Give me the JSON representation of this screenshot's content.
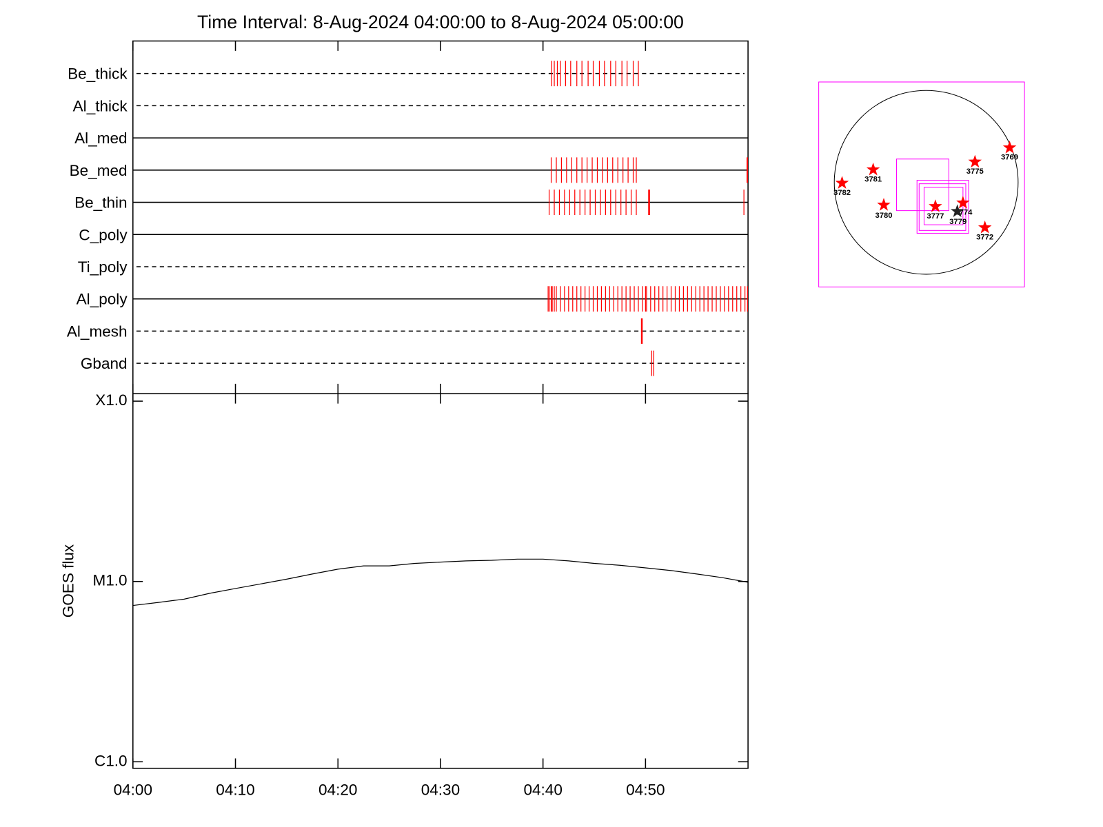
{
  "chart_data": [
    {
      "type": "event",
      "title": "Time Interval:  8-Aug-2024 04:00:00 to  8-Aug-2024 05:00:00",
      "categories": [
        "Be_thick",
        "Al_thick",
        "Al_med",
        "Be_med",
        "Be_thin",
        "C_poly",
        "Ti_poly",
        "Al_poly",
        "Al_mesh",
        "Gband"
      ],
      "line_styles": [
        "dashed",
        "dashed",
        "solid",
        "solid",
        "solid",
        "solid",
        "dashed",
        "solid",
        "dashed",
        "dashed"
      ],
      "events": [
        [
          40.85,
          41.1,
          41.4,
          41.7,
          42.2,
          42.7,
          43.3,
          43.8,
          44.4,
          44.9,
          45.5,
          46.0,
          46.6,
          47.1,
          47.7,
          48.2,
          48.8,
          49.3
        ],
        [],
        [],
        [
          40.8,
          41.3,
          41.8,
          42.3,
          42.8,
          43.3,
          43.8,
          44.3,
          44.8,
          45.3,
          45.8,
          46.3,
          46.8,
          47.3,
          47.8,
          48.3,
          48.8,
          49.1,
          59.9,
          59.95
        ],
        [
          40.6,
          41.1,
          41.6,
          42.1,
          42.6,
          43.1,
          43.6,
          44.1,
          44.6,
          45.1,
          45.6,
          46.1,
          46.6,
          47.1,
          47.6,
          48.1,
          48.6,
          49.1,
          50.3,
          50.4,
          59.6
        ],
        [],
        [],
        [
          40.5,
          40.6,
          40.8,
          40.9,
          41.1,
          41.3,
          41.7,
          42.1,
          42.5,
          42.9,
          43.3,
          43.7,
          44.1,
          44.5,
          44.9,
          45.3,
          45.7,
          46.1,
          46.5,
          46.9,
          47.3,
          47.7,
          48.1,
          48.5,
          48.9,
          49.3,
          49.7,
          50.0,
          50.1,
          50.5,
          50.9,
          51.3,
          51.7,
          52.1,
          52.5,
          52.9,
          53.3,
          53.7,
          54.1,
          54.5,
          54.9,
          55.3,
          55.7,
          56.1,
          56.5,
          56.9,
          57.3,
          57.7,
          58.1,
          58.5,
          58.9,
          59.3,
          59.7,
          59.95
        ],
        [
          49.6,
          49.7
        ],
        [
          50.6,
          50.8
        ]
      ],
      "color": "#ff0000",
      "xlim": [
        0,
        60
      ]
    },
    {
      "type": "line",
      "y_label": "GOES flux",
      "x": [
        0,
        2.5,
        5,
        7.5,
        10,
        12.5,
        15,
        17.5,
        20,
        22.5,
        25,
        27.5,
        30,
        32.5,
        35,
        37.5,
        40,
        42.5,
        45,
        47.5,
        50,
        52.5,
        55,
        57.5,
        60
      ],
      "values": [
        7.36e-06,
        7.65e-06,
        7.98e-06,
        8.6e-06,
        9.14e-06,
        9.7e-06,
        1.03e-05,
        1.1e-05,
        1.17e-05,
        1.22e-05,
        1.22e-05,
        1.26e-05,
        1.28e-05,
        1.3e-05,
        1.31e-05,
        1.33e-05,
        1.33e-05,
        1.3e-05,
        1.26e-05,
        1.23e-05,
        1.19e-05,
        1.15e-05,
        1.1e-05,
        1.05e-05,
        9.9e-06
      ],
      "color": "#000000",
      "xlim": [
        0,
        60
      ],
      "xticks": [
        {
          "value": 0,
          "label": "04:00"
        },
        {
          "value": 10,
          "label": "04:10"
        },
        {
          "value": 20,
          "label": "04:20"
        },
        {
          "value": 30,
          "label": "04:30"
        },
        {
          "value": 40,
          "label": "04:40"
        },
        {
          "value": 50,
          "label": "04:50"
        }
      ],
      "ylim": [
        9.2e-07,
        0.00011
      ],
      "yticks": [
        {
          "value": 1e-06,
          "label": "C1.0"
        },
        {
          "value": 1e-05,
          "label": "M1.0"
        },
        {
          "value": 0.0001,
          "label": "X1.0"
        }
      ],
      "log_scale": true
    }
  ],
  "sun_map": {
    "regions": [
      "3769",
      "3775",
      "3781",
      "3782",
      "3780",
      "3777",
      "3774",
      "3779",
      "3772"
    ]
  }
}
